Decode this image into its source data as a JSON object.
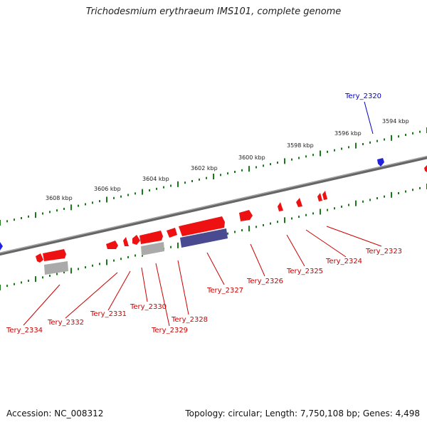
{
  "header": {
    "title": "Trichodesmium erythraeum IMS101, complete genome"
  },
  "footer": {
    "accession": "Accession: NC_008312",
    "summary": "Topology: circular; Length: 7,750,108 bp; Genes: 4,498"
  },
  "colors": {
    "forward_gene": "#ee1111",
    "reverse_gene": "#ee1111",
    "highlight_gene": "#2222dd",
    "backbone": "#888888",
    "ticks": "#1a7a1a",
    "protein_bar": "#4a4a90",
    "pseudo_bar": "#aaaaaa",
    "label_red": "#cc0000",
    "label_blue": "#0000cc"
  },
  "scale_labels": [
    "3594 kbp",
    "3596 kbp",
    "3598 kbp",
    "3600 kbp",
    "3602 kbp",
    "3604 kbp",
    "3606 kbp",
    "3608 kbp"
  ],
  "gene_labels": [
    {
      "text": "Tery_2320",
      "color": "blue"
    },
    {
      "text": "Tery_2323",
      "color": "red"
    },
    {
      "text": "Tery_2324",
      "color": "red"
    },
    {
      "text": "Tery_2325",
      "color": "red"
    },
    {
      "text": "Tery_2326",
      "color": "red"
    },
    {
      "text": "Tery_2327",
      "color": "red"
    },
    {
      "text": "Tery_2328",
      "color": "red"
    },
    {
      "text": "Tery_2329",
      "color": "red"
    },
    {
      "text": "Tery_2330",
      "color": "red"
    },
    {
      "text": "Tery_2331",
      "color": "red"
    },
    {
      "text": "Tery_2332",
      "color": "red"
    },
    {
      "text": "Tery_2334",
      "color": "red"
    }
  ]
}
